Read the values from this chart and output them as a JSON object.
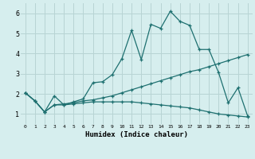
{
  "xlabel": "Humidex (Indice chaleur)",
  "x_ticks": [
    0,
    1,
    2,
    3,
    4,
    5,
    6,
    7,
    8,
    9,
    10,
    11,
    12,
    13,
    14,
    15,
    16,
    17,
    18,
    19,
    20,
    21,
    22,
    23
  ],
  "y_ticks": [
    1,
    2,
    3,
    4,
    5,
    6
  ],
  "ylim": [
    0.5,
    6.5
  ],
  "xlim": [
    -0.5,
    23.5
  ],
  "bg_color": "#d6eeee",
  "grid_color": "#b8d4d4",
  "line_color": "#1e7070",
  "line1_x": [
    0,
    1,
    2,
    3,
    4,
    5,
    6,
    7,
    8,
    9,
    10,
    11,
    12,
    13,
    14,
    15,
    16,
    17,
    18,
    19,
    20,
    21,
    22,
    23
  ],
  "line1_y": [
    2.05,
    1.65,
    1.1,
    1.9,
    1.45,
    1.6,
    1.75,
    2.55,
    2.6,
    2.95,
    3.75,
    5.15,
    3.7,
    5.45,
    5.25,
    6.1,
    5.6,
    5.4,
    4.2,
    4.2,
    3.05,
    1.55,
    2.3,
    0.9
  ],
  "line2_x": [
    0,
    1,
    2,
    3,
    4,
    5,
    6,
    7,
    8,
    9,
    10,
    11,
    12,
    13,
    14,
    15,
    16,
    17,
    18,
    19,
    20,
    21,
    22,
    23
  ],
  "line2_y": [
    2.05,
    1.65,
    1.1,
    1.45,
    1.5,
    1.55,
    1.65,
    1.7,
    1.8,
    1.9,
    2.05,
    2.2,
    2.35,
    2.5,
    2.65,
    2.8,
    2.95,
    3.1,
    3.2,
    3.35,
    3.5,
    3.65,
    3.8,
    3.95
  ],
  "line3_x": [
    0,
    1,
    2,
    3,
    4,
    5,
    6,
    7,
    8,
    9,
    10,
    11,
    12,
    13,
    14,
    15,
    16,
    17,
    18,
    19,
    20,
    21,
    22,
    23
  ],
  "line3_y": [
    2.05,
    1.65,
    1.1,
    1.45,
    1.45,
    1.5,
    1.55,
    1.6,
    1.6,
    1.6,
    1.6,
    1.6,
    1.55,
    1.5,
    1.45,
    1.4,
    1.35,
    1.3,
    1.2,
    1.1,
    1.0,
    0.95,
    0.9,
    0.85
  ]
}
